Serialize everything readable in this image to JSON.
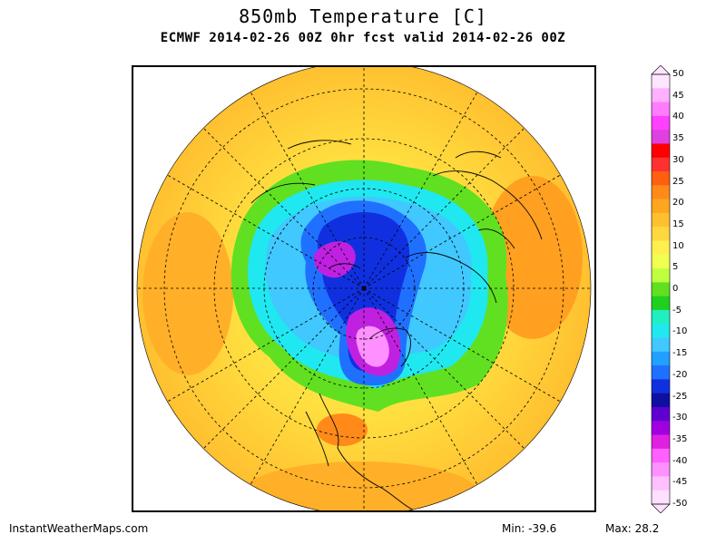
{
  "header": {
    "title": "850mb Temperature [C]",
    "subtitle": "ECMWF 2014-02-26 00Z 0hr fcst valid 2014-02-26 00Z"
  },
  "colorbar": {
    "labels": [
      "50",
      "45",
      "40",
      "35",
      "30",
      "25",
      "20",
      "15",
      "10",
      "5",
      "0",
      "-5",
      "-10",
      "-15",
      "-20",
      "-25",
      "-30",
      "-35",
      "-40",
      "-45",
      "-50"
    ],
    "colors": [
      "#ffe6ff",
      "#ffb0ff",
      "#ff7cff",
      "#ff40ff",
      "#e040e0",
      "#ff0000",
      "#ff3030",
      "#ff6010",
      "#ff8a1a",
      "#ffa620",
      "#ffc030",
      "#ffd840",
      "#fff050",
      "#f0ff50",
      "#c0ff40",
      "#60e020",
      "#20d020",
      "#20f0c0",
      "#20e8f0",
      "#40c8ff",
      "#20a0ff",
      "#2070ff",
      "#1030e0",
      "#1010a0",
      "#6000d0",
      "#a000e0",
      "#e020e0",
      "#ff60ff",
      "#ff90ff",
      "#ffc0ff",
      "#ffe0ff"
    ]
  },
  "footer": {
    "site": "InstantWeatherMaps.com",
    "min": "Min: -39.6",
    "max": "Max: 28.2"
  }
}
